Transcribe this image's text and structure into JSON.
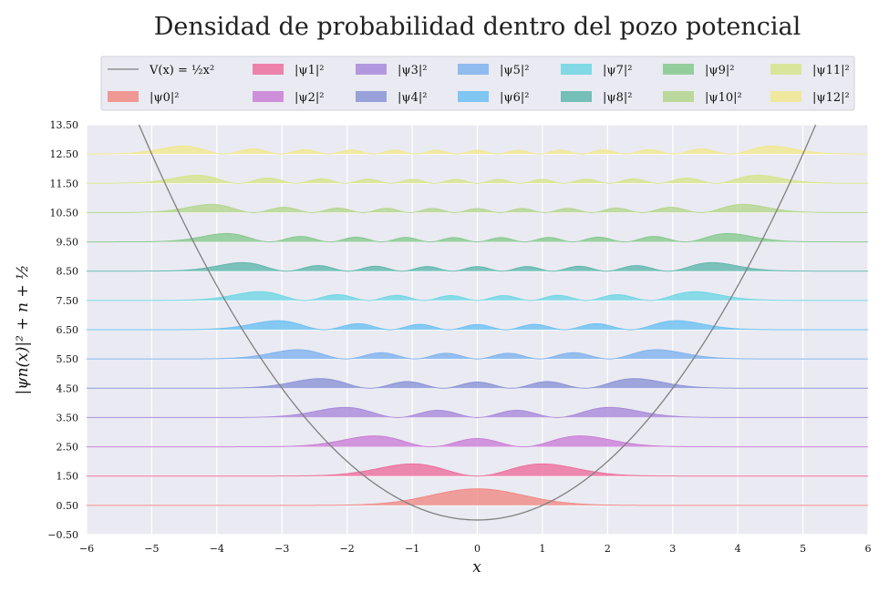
{
  "chart_data": {
    "type": "area",
    "title": "Densidad de probabilidad dentro del pozo potencial",
    "xlabel": "x",
    "ylabel": "|ψn(x)|² + n + ½",
    "xlim": [
      -6,
      6
    ],
    "ylim": [
      -0.5,
      13.5
    ],
    "x_ticks": [
      -6,
      -5,
      -4,
      -3,
      -2,
      -1,
      0,
      1,
      2,
      3,
      4,
      5,
      6
    ],
    "y_ticks": [
      -0.5,
      0.5,
      1.5,
      2.5,
      3.5,
      4.5,
      5.5,
      6.5,
      7.5,
      8.5,
      9.5,
      10.5,
      11.5,
      12.5,
      13.5
    ],
    "x_tick_labels": [
      "−6",
      "−5",
      "−4",
      "−3",
      "−2",
      "−1",
      "0",
      "1",
      "2",
      "3",
      "4",
      "5",
      "6"
    ],
    "y_tick_labels": [
      "−0.50",
      "0.50",
      "1.50",
      "2.50",
      "3.50",
      "4.50",
      "5.50",
      "6.50",
      "7.50",
      "8.50",
      "9.50",
      "10.50",
      "11.50",
      "12.50",
      "13.50"
    ],
    "potential": {
      "label": "V(x) = ½x²",
      "formula": "0.5*x^2",
      "color": "#808080"
    },
    "series": [
      {
        "name": "|ψ0|²",
        "n": 0,
        "offset": 0.5,
        "color": "#f08a84"
      },
      {
        "name": "|ψ1|²",
        "n": 1,
        "offset": 1.5,
        "color": "#ec6f9c"
      },
      {
        "name": "|ψ2|²",
        "n": 2,
        "offset": 2.5,
        "color": "#c97fd6"
      },
      {
        "name": "|ψ3|²",
        "n": 3,
        "offset": 3.5,
        "color": "#a88ada"
      },
      {
        "name": "|ψ4|²",
        "n": 4,
        "offset": 4.5,
        "color": "#8b94d6"
      },
      {
        "name": "|ψ5|²",
        "n": 5,
        "offset": 5.5,
        "color": "#7fb3ee"
      },
      {
        "name": "|ψ6|²",
        "n": 6,
        "offset": 6.5,
        "color": "#6cc0f2"
      },
      {
        "name": "|ψ7|²",
        "n": 7,
        "offset": 7.5,
        "color": "#6fd6e4"
      },
      {
        "name": "|ψ8|²",
        "n": 8,
        "offset": 8.5,
        "color": "#5fb7ad"
      },
      {
        "name": "|ψ9|²",
        "n": 9,
        "offset": 9.5,
        "color": "#86c98e"
      },
      {
        "name": "|ψ10|²",
        "n": 10,
        "offset": 10.5,
        "color": "#b4d68e"
      },
      {
        "name": "|ψ11|²",
        "n": 11,
        "offset": 11.5,
        "color": "#d6e48c"
      },
      {
        "name": "|ψ12|²",
        "n": 12,
        "offset": 12.5,
        "color": "#f1e88f"
      }
    ]
  }
}
